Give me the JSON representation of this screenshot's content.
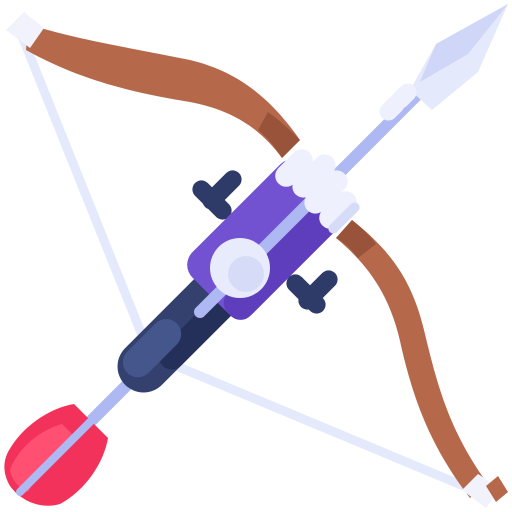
{
  "icon": {
    "name": "crossbow-icon",
    "colors": {
      "bow_wood": "#B5694A",
      "bow_wood_dark": "#99533A",
      "bow_tip": "#F1F2FB",
      "string": "#E4E9FB",
      "arrow_shaft": "#AEB8F2",
      "arrow_head": "#E5E9FC",
      "arrow_head_shade": "#CFD6F8",
      "fletching": "#F2325A",
      "fletching_light": "#FF5072",
      "stock_dark": "#25305A",
      "stock_mid": "#34416F",
      "stock_light": "#44568C",
      "mount_purple": "#7352D2",
      "mount_purple_dark": "#5F3EBE",
      "knob_navy": "#2E3A68",
      "bindings": "#EEF1FD",
      "bindings_shade": "#D6DCF7",
      "sight_ring": "#E8EBFB"
    }
  }
}
